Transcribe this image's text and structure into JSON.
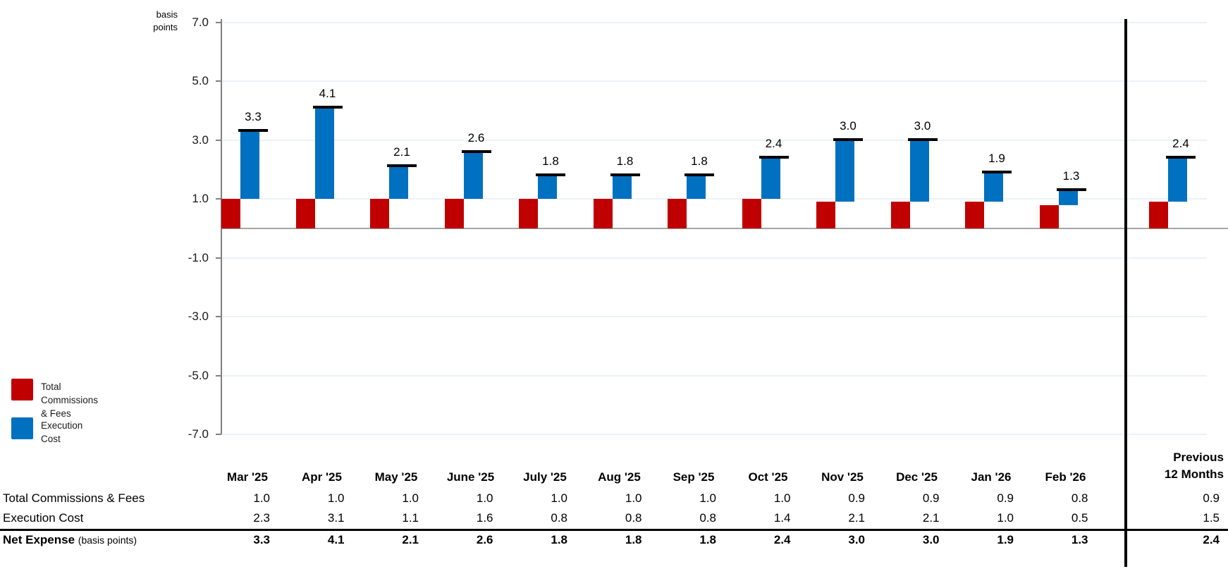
{
  "chart": {
    "axis": {
      "unit_label": "basis points"
    },
    "legend": [
      {
        "label": "Total Commissions\n& Fees",
        "color": "#C00000"
      },
      {
        "label": "Execution\nCost",
        "color": "#0070C0"
      }
    ]
  },
  "chart_data": {
    "type": "bar",
    "subtype": "stacked-column-waterfall-with-total-caps",
    "title": "",
    "ylabel": "basis points",
    "categories": [
      "Mar '25",
      "Apr '25",
      "May '25",
      "June '25",
      "July '25",
      "Aug '25",
      "Sep '25",
      "Oct '25",
      "Nov '25",
      "Dec '25",
      "Jan '26",
      "Feb '26",
      "Previous 12 Months"
    ],
    "series": [
      {
        "name": "Total Commissions & Fees",
        "color": "#C00000",
        "values": [
          1.0,
          1.0,
          1.0,
          1.0,
          1.0,
          1.0,
          1.0,
          1.0,
          0.9,
          0.9,
          0.9,
          0.8,
          0.9
        ]
      },
      {
        "name": "Execution Cost",
        "color": "#0070C0",
        "values": [
          2.3,
          3.1,
          1.1,
          1.6,
          0.8,
          0.8,
          0.8,
          1.4,
          2.1,
          2.1,
          1.0,
          0.5,
          1.5
        ]
      }
    ],
    "totals": {
      "name": "Net Expense",
      "unit": "basis points",
      "values": [
        3.3,
        4.1,
        2.1,
        2.6,
        1.8,
        1.8,
        1.8,
        2.4,
        3.0,
        3.0,
        1.9,
        1.3,
        2.4
      ]
    },
    "ylim": [
      -7.0,
      7.0
    ],
    "yticks": [
      7.0,
      5.0,
      3.0,
      1.0,
      -1.0,
      -3.0,
      -5.0,
      -7.0
    ],
    "grid": true,
    "legend_position": "bottom-left",
    "separator_before_last_category": true
  },
  "table": {
    "summary_col_header": "Previous\n12 Months",
    "row_labels": [
      "Total Commissions & Fees",
      "Execution Cost",
      "Net Expense"
    ],
    "net_expense_suffix": "(basis points)"
  }
}
